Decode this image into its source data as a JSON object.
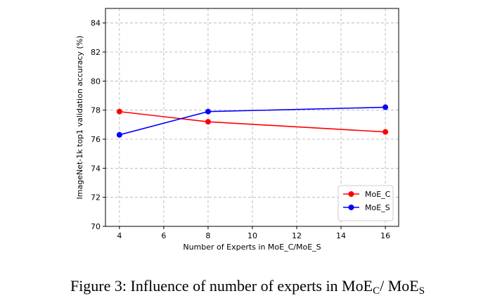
{
  "chart_data": {
    "type": "line",
    "x": [
      4,
      8,
      16
    ],
    "series": [
      {
        "name": "MoE_C",
        "color": "#ff0000",
        "values": [
          77.9,
          77.2,
          76.5
        ]
      },
      {
        "name": "MoE_S",
        "color": "#0000ff",
        "values": [
          76.3,
          77.9,
          78.2
        ]
      }
    ],
    "x_label": "Number of Experts in MoE_C/MoE_S",
    "y_label": "ImageNet-1k top1 validation accuracy (%)",
    "xlim": [
      3.37,
      16.6
    ],
    "xticks": [
      4,
      6,
      8,
      10,
      12,
      14,
      16
    ],
    "ylim": [
      70,
      85
    ],
    "yticks": [
      70,
      72,
      74,
      76,
      78,
      80,
      82,
      84
    ],
    "grid": true,
    "legend": "lower right"
  },
  "caption": {
    "parts": [
      "Figure 3: Influence of number of experts in MoE",
      "C",
      "/ MoE",
      "S"
    ]
  }
}
